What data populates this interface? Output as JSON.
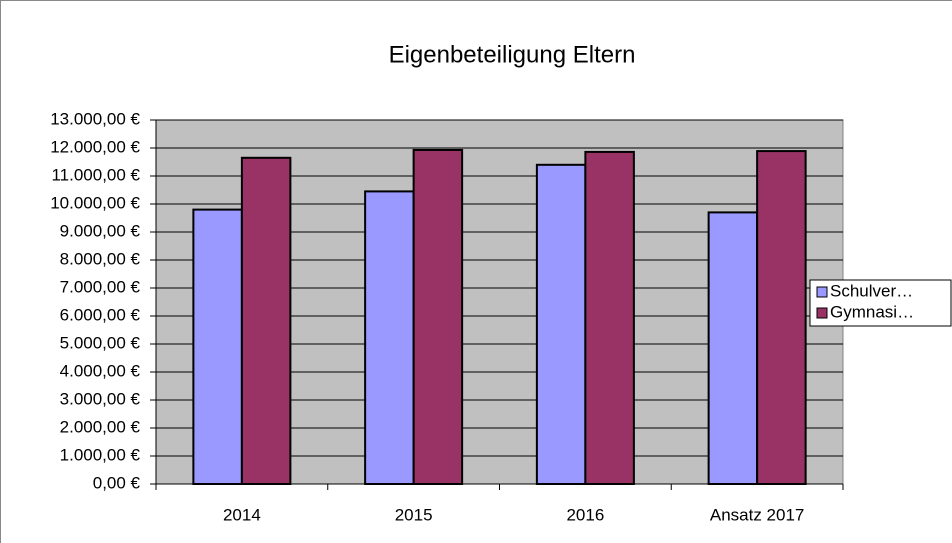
{
  "chart_data": {
    "type": "bar",
    "title": "Eigenbeteiligung Eltern",
    "categories": [
      "2014",
      "2015",
      "2016",
      "Ansatz 2017"
    ],
    "series": [
      {
        "name": "Schulver…",
        "color": "#9999ff",
        "values": [
          9800,
          10450,
          11400,
          9700
        ]
      },
      {
        "name": "Gymnasi…",
        "color": "#993366",
        "values": [
          11650,
          11930,
          11860,
          11890
        ]
      }
    ],
    "ylim": [
      0,
      13000
    ],
    "yticks": [
      {
        "value": 0,
        "label": "0,00 €"
      },
      {
        "value": 1000,
        "label": "1.000,00 €"
      },
      {
        "value": 2000,
        "label": "2.000,00 €"
      },
      {
        "value": 3000,
        "label": "3.000,00 €"
      },
      {
        "value": 4000,
        "label": "4.000,00 €"
      },
      {
        "value": 5000,
        "label": "5.000,00 €"
      },
      {
        "value": 6000,
        "label": "6.000,00 €"
      },
      {
        "value": 7000,
        "label": "7.000,00 €"
      },
      {
        "value": 8000,
        "label": "8.000,00 €"
      },
      {
        "value": 9000,
        "label": "9.000,00 €"
      },
      {
        "value": 10000,
        "label": "10.000,00 €"
      },
      {
        "value": 11000,
        "label": "11.000,00 €"
      },
      {
        "value": 12000,
        "label": "12.000,00 €"
      },
      {
        "value": 13000,
        "label": "13.000,00 €"
      }
    ],
    "grid": true,
    "legend": "right"
  }
}
